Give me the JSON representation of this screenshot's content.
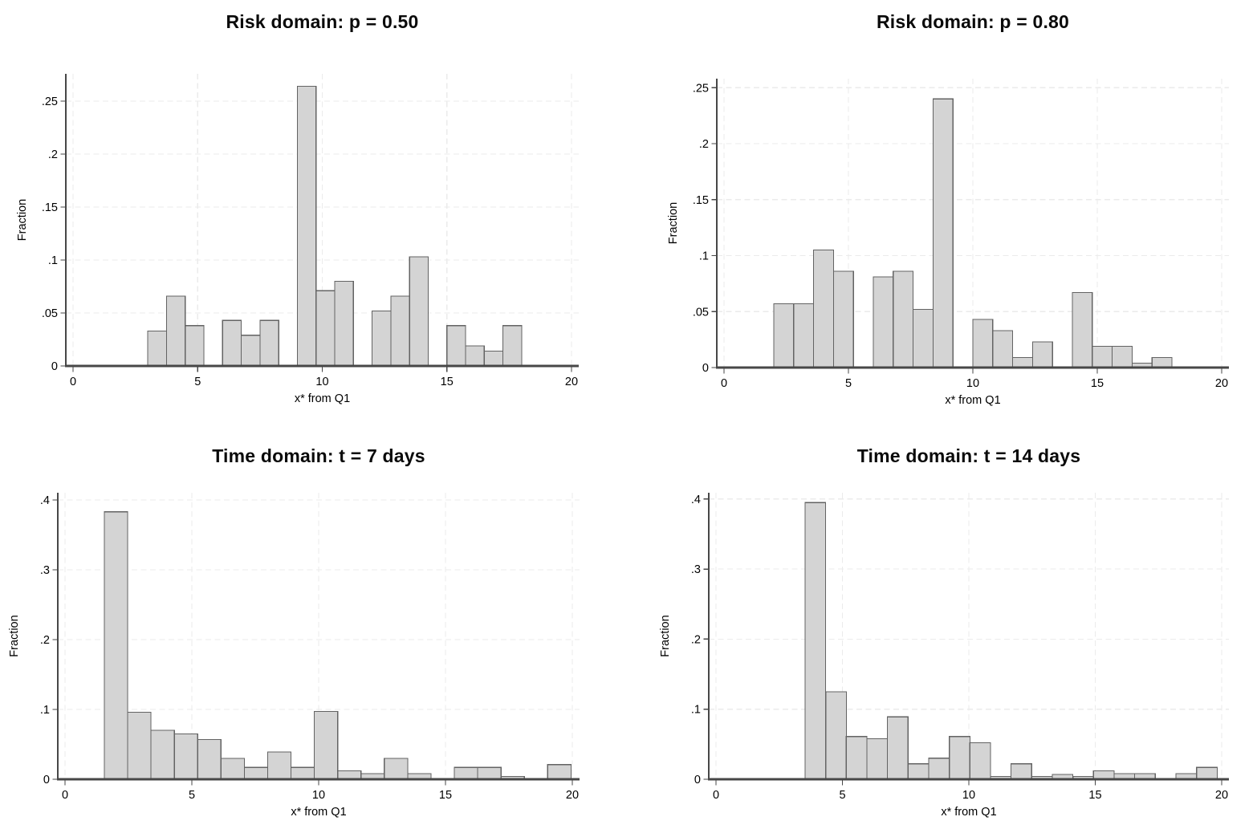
{
  "figure": {
    "background": "#ffffff",
    "layout": "2x2-histogram-grid"
  },
  "style": {
    "bar_fill": "#d4d4d4",
    "bar_stroke": "#636363",
    "axis_color": "#474747",
    "grid_color": "#ebebeb",
    "text_color": "#000000",
    "title_color": "#0a0a0a"
  },
  "chart_data": [
    {
      "type": "bar",
      "title": "Risk domain: p = 0.50",
      "xlabel": "x* from Q1",
      "ylabel": "Fraction",
      "xlim": [
        0,
        20
      ],
      "ylim": [
        0,
        0.27
      ],
      "grid": true,
      "legend": "none",
      "x_ticks": [
        {
          "v": 0,
          "label": "0"
        },
        {
          "v": 5,
          "label": "5"
        },
        {
          "v": 10,
          "label": "10"
        },
        {
          "v": 15,
          "label": "15"
        },
        {
          "v": 20,
          "label": "20"
        }
      ],
      "y_ticks": [
        {
          "v": 0,
          "label": "0"
        },
        {
          "v": 0.05,
          "label": ".05"
        },
        {
          "v": 0.1,
          "label": ".1"
        },
        {
          "v": 0.15,
          "label": ".15"
        },
        {
          "v": 0.2,
          "label": ".2"
        },
        {
          "v": 0.25,
          "label": ".25"
        }
      ],
      "bin_width": 0.75,
      "bars": [
        {
          "x": 3.0,
          "fraction": 0.033
        },
        {
          "x": 3.75,
          "fraction": 0.066
        },
        {
          "x": 4.5,
          "fraction": 0.038
        },
        {
          "x": 6.0,
          "fraction": 0.043
        },
        {
          "x": 6.75,
          "fraction": 0.029
        },
        {
          "x": 7.5,
          "fraction": 0.043
        },
        {
          "x": 9.0,
          "fraction": 0.264
        },
        {
          "x": 9.75,
          "fraction": 0.071
        },
        {
          "x": 10.5,
          "fraction": 0.08
        },
        {
          "x": 12.0,
          "fraction": 0.052
        },
        {
          "x": 12.75,
          "fraction": 0.066
        },
        {
          "x": 13.5,
          "fraction": 0.103
        },
        {
          "x": 15.0,
          "fraction": 0.038
        },
        {
          "x": 15.75,
          "fraction": 0.019
        },
        {
          "x": 16.5,
          "fraction": 0.014
        },
        {
          "x": 17.25,
          "fraction": 0.038
        }
      ]
    },
    {
      "type": "bar",
      "title": "Risk domain: p = 0.80",
      "xlabel": "x* from Q1",
      "ylabel": "Fraction",
      "xlim": [
        0,
        20
      ],
      "ylim": [
        0,
        0.26
      ],
      "grid": true,
      "legend": "none",
      "x_ticks": [
        {
          "v": 0,
          "label": "0"
        },
        {
          "v": 5,
          "label": "5"
        },
        {
          "v": 10,
          "label": "10"
        },
        {
          "v": 15,
          "label": "15"
        },
        {
          "v": 20,
          "label": "20"
        }
      ],
      "y_ticks": [
        {
          "v": 0,
          "label": "0"
        },
        {
          "v": 0.05,
          "label": ".05"
        },
        {
          "v": 0.1,
          "label": ".1"
        },
        {
          "v": 0.15,
          "label": ".15"
        },
        {
          "v": 0.2,
          "label": ".2"
        },
        {
          "v": 0.25,
          "label": ".25"
        }
      ],
      "bin_width": 0.8,
      "bars": [
        {
          "x": 2.0,
          "fraction": 0.057
        },
        {
          "x": 2.8,
          "fraction": 0.057
        },
        {
          "x": 3.6,
          "fraction": 0.105
        },
        {
          "x": 4.4,
          "fraction": 0.086
        },
        {
          "x": 6.0,
          "fraction": 0.081
        },
        {
          "x": 6.8,
          "fraction": 0.086
        },
        {
          "x": 7.6,
          "fraction": 0.052
        },
        {
          "x": 8.4,
          "fraction": 0.24
        },
        {
          "x": 10.0,
          "fraction": 0.043
        },
        {
          "x": 10.8,
          "fraction": 0.033
        },
        {
          "x": 11.6,
          "fraction": 0.009
        },
        {
          "x": 12.4,
          "fraction": 0.023
        },
        {
          "x": 14.0,
          "fraction": 0.067
        },
        {
          "x": 14.8,
          "fraction": 0.019
        },
        {
          "x": 15.6,
          "fraction": 0.019
        },
        {
          "x": 16.4,
          "fraction": 0.004
        },
        {
          "x": 17.2,
          "fraction": 0.009
        }
      ]
    },
    {
      "type": "bar",
      "title": "Time domain: t = 7 days",
      "xlabel": "x* from Q1",
      "ylabel": "Fraction",
      "xlim": [
        0,
        20
      ],
      "ylim": [
        0,
        0.42
      ],
      "grid": true,
      "legend": "none",
      "x_ticks": [
        {
          "v": 0,
          "label": "0"
        },
        {
          "v": 5,
          "label": "5"
        },
        {
          "v": 10,
          "label": "10"
        },
        {
          "v": 15,
          "label": "15"
        },
        {
          "v": 20,
          "label": "20"
        }
      ],
      "y_ticks": [
        {
          "v": 0,
          "label": "0"
        },
        {
          "v": 0.1,
          "label": ".1"
        },
        {
          "v": 0.2,
          "label": ".2"
        },
        {
          "v": 0.3,
          "label": ".3"
        },
        {
          "v": 0.4,
          "label": ".4"
        }
      ],
      "bin_width": 0.92,
      "bars": [
        {
          "x": 1.55,
          "fraction": 0.383
        },
        {
          "x": 2.47,
          "fraction": 0.096
        },
        {
          "x": 3.39,
          "fraction": 0.07
        },
        {
          "x": 4.31,
          "fraction": 0.065
        },
        {
          "x": 5.23,
          "fraction": 0.057
        },
        {
          "x": 6.15,
          "fraction": 0.03
        },
        {
          "x": 7.07,
          "fraction": 0.017
        },
        {
          "x": 7.99,
          "fraction": 0.039
        },
        {
          "x": 8.91,
          "fraction": 0.017
        },
        {
          "x": 9.83,
          "fraction": 0.097
        },
        {
          "x": 10.75,
          "fraction": 0.012
        },
        {
          "x": 11.67,
          "fraction": 0.008
        },
        {
          "x": 12.59,
          "fraction": 0.03
        },
        {
          "x": 13.51,
          "fraction": 0.008
        },
        {
          "x": 15.35,
          "fraction": 0.017
        },
        {
          "x": 16.27,
          "fraction": 0.017
        },
        {
          "x": 17.19,
          "fraction": 0.004
        },
        {
          "x": 19.03,
          "fraction": 0.021
        }
      ]
    },
    {
      "type": "bar",
      "title": "Time domain: t = 14 days",
      "xlabel": "x* from Q1",
      "ylabel": "Fraction",
      "xlim": [
        0,
        20
      ],
      "ylim": [
        0,
        0.42
      ],
      "grid": true,
      "legend": "none",
      "x_ticks": [
        {
          "v": 0,
          "label": "0"
        },
        {
          "v": 5,
          "label": "5"
        },
        {
          "v": 10,
          "label": "10"
        },
        {
          "v": 15,
          "label": "15"
        },
        {
          "v": 20,
          "label": "20"
        }
      ],
      "y_ticks": [
        {
          "v": 0,
          "label": "0"
        },
        {
          "v": 0.1,
          "label": ".1"
        },
        {
          "v": 0.2,
          "label": ".2"
        },
        {
          "v": 0.3,
          "label": ".3"
        },
        {
          "v": 0.4,
          "label": ".4"
        }
      ],
      "bin_width": 0.815,
      "bars": [
        {
          "x": 3.52,
          "fraction": 0.395
        },
        {
          "x": 4.34,
          "fraction": 0.125
        },
        {
          "x": 5.15,
          "fraction": 0.061
        },
        {
          "x": 5.97,
          "fraction": 0.058
        },
        {
          "x": 6.78,
          "fraction": 0.089
        },
        {
          "x": 7.6,
          "fraction": 0.022
        },
        {
          "x": 8.41,
          "fraction": 0.03
        },
        {
          "x": 9.23,
          "fraction": 0.061
        },
        {
          "x": 10.04,
          "fraction": 0.052
        },
        {
          "x": 10.86,
          "fraction": 0.004
        },
        {
          "x": 11.67,
          "fraction": 0.022
        },
        {
          "x": 12.49,
          "fraction": 0.004
        },
        {
          "x": 13.3,
          "fraction": 0.007
        },
        {
          "x": 14.12,
          "fraction": 0.004
        },
        {
          "x": 14.93,
          "fraction": 0.012
        },
        {
          "x": 15.75,
          "fraction": 0.008
        },
        {
          "x": 16.56,
          "fraction": 0.008
        },
        {
          "x": 18.19,
          "fraction": 0.008
        },
        {
          "x": 19.01,
          "fraction": 0.017
        }
      ]
    }
  ]
}
